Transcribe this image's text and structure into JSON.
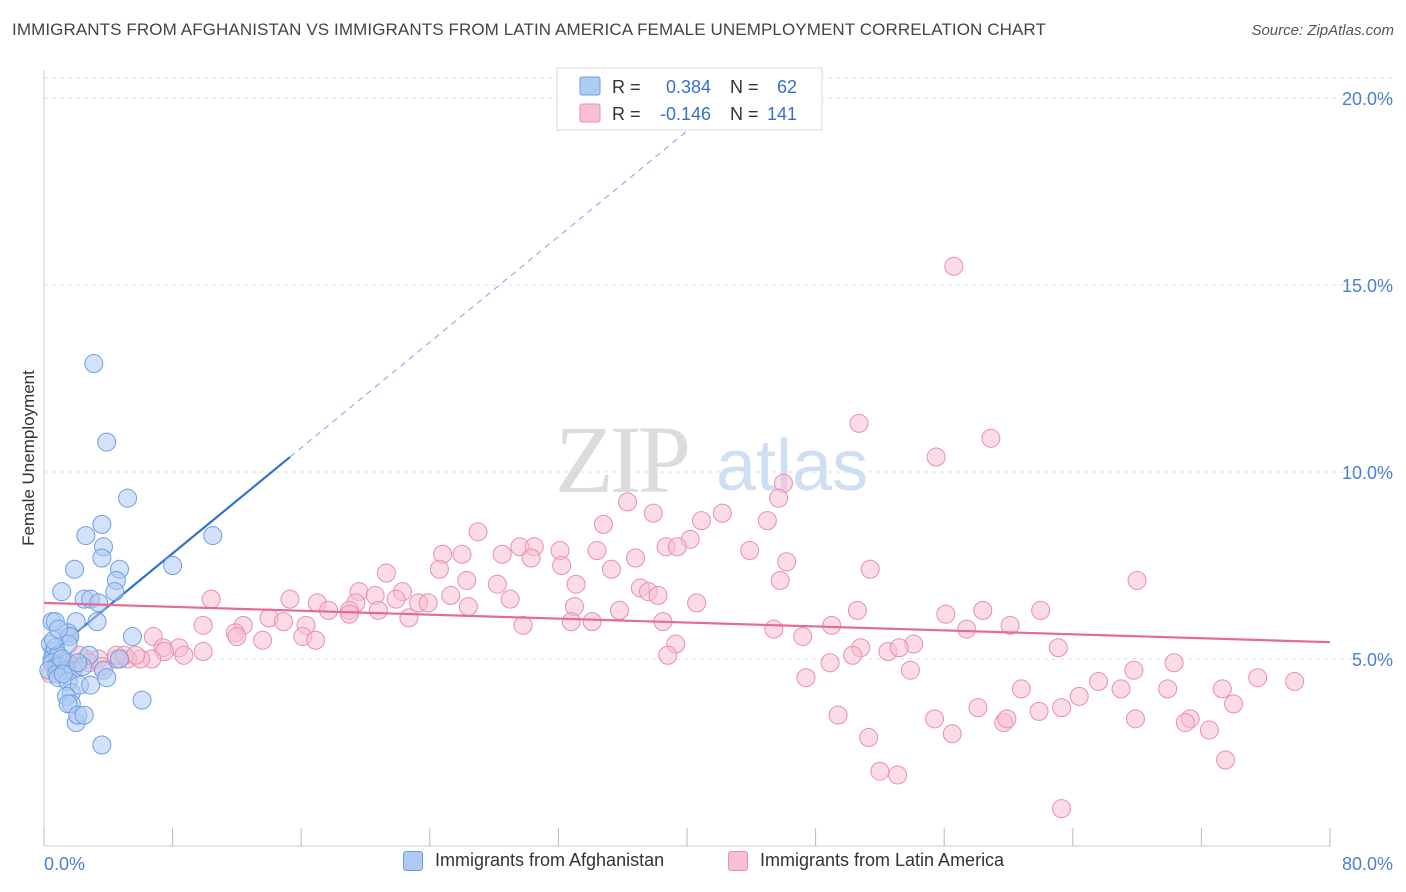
{
  "title": "IMMIGRANTS FROM AFGHANISTAN VS IMMIGRANTS FROM LATIN AMERICA FEMALE UNEMPLOYMENT CORRELATION CHART",
  "source": "Source: ZipAtlas.com",
  "watermark": {
    "zip": "ZIP",
    "atlas": "atlas"
  },
  "legend": {
    "rows": [
      {
        "r_label": "R =",
        "r_value": "0.384",
        "n_label": "N =",
        "n_value": "62"
      },
      {
        "r_label": "R =",
        "r_value": "-0.146",
        "n_label": "N =",
        "n_value": "141"
      }
    ]
  },
  "bottom_legend": [
    "Immigrants from Afghanistan",
    "Immigrants from Latin America"
  ],
  "colors": {
    "blue_fill": "#aecbf2",
    "blue_stroke": "#6f9ee0",
    "blue_line": "#2f72d0",
    "pink_fill": "#f7bfd0",
    "pink_stroke": "#e88fac",
    "pink_line": "#e36b96",
    "tick_label": "#4a7fd4"
  },
  "chart_data": {
    "type": "scatter",
    "title": "IMMIGRANTS FROM AFGHANISTAN VS IMMIGRANTS FROM LATIN AMERICA FEMALE UNEMPLOYMENT CORRELATION CHART",
    "xlabel": "",
    "ylabel": "Female Unemployment",
    "xlim": [
      0,
      80
    ],
    "ylim": [
      0,
      20
    ],
    "x_tick_labels": [
      "0.0%",
      "80.0%"
    ],
    "y_ticks": [
      5,
      10,
      15,
      20
    ],
    "y_tick_labels": [
      "5.0%",
      "10.0%",
      "15.0%",
      "20.0%"
    ],
    "grid": true,
    "legend_position": "top-center",
    "series": [
      {
        "name": "Immigrants from Afghanistan",
        "r": 0.384,
        "n": 62,
        "trend": {
          "x0": 0,
          "y0": 5.0,
          "x1": 15.3,
          "y1": 10.4,
          "dashed_to_x": 40
        },
        "points": [
          [
            3.1,
            12.9
          ],
          [
            3.9,
            10.8
          ],
          [
            5.2,
            9.3
          ],
          [
            10.5,
            8.3
          ],
          [
            3.6,
            8.6
          ],
          [
            2.6,
            8.3
          ],
          [
            3.7,
            8.0
          ],
          [
            3.6,
            7.7
          ],
          [
            8.0,
            7.5
          ],
          [
            1.9,
            7.4
          ],
          [
            4.7,
            7.4
          ],
          [
            4.5,
            7.1
          ],
          [
            1.1,
            6.8
          ],
          [
            2.5,
            6.6
          ],
          [
            2.9,
            6.6
          ],
          [
            4.4,
            6.8
          ],
          [
            3.4,
            6.5
          ],
          [
            0.5,
            6.0
          ],
          [
            0.7,
            6.0
          ],
          [
            2.0,
            6.0
          ],
          [
            3.3,
            6.0
          ],
          [
            1.5,
            5.7
          ],
          [
            1.6,
            5.6
          ],
          [
            1.6,
            5.6
          ],
          [
            1.5,
            5.4
          ],
          [
            0.4,
            5.4
          ],
          [
            0.6,
            5.2
          ],
          [
            0.5,
            5.0
          ],
          [
            0.7,
            5.3
          ],
          [
            0.9,
            5.1
          ],
          [
            2.8,
            5.1
          ],
          [
            4.7,
            5.0
          ],
          [
            0.5,
            4.9
          ],
          [
            0.8,
            4.8
          ],
          [
            1.0,
            4.8
          ],
          [
            1.5,
            4.9
          ],
          [
            0.3,
            4.7
          ],
          [
            0.8,
            4.6
          ],
          [
            1.4,
            4.7
          ],
          [
            1.8,
            4.7
          ],
          [
            2.4,
            4.8
          ],
          [
            3.7,
            4.7
          ],
          [
            5.5,
            5.6
          ],
          [
            0.9,
            4.5
          ],
          [
            1.5,
            4.4
          ],
          [
            1.7,
            4.1
          ],
          [
            2.2,
            4.3
          ],
          [
            2.9,
            4.3
          ],
          [
            1.4,
            4.0
          ],
          [
            1.7,
            3.8
          ],
          [
            6.1,
            3.9
          ],
          [
            1.5,
            3.8
          ],
          [
            3.9,
            4.5
          ],
          [
            2.0,
            3.3
          ],
          [
            2.1,
            3.5
          ],
          [
            2.5,
            3.5
          ],
          [
            3.6,
            2.7
          ],
          [
            1.1,
            5.0
          ],
          [
            0.6,
            5.5
          ],
          [
            1.2,
            4.6
          ],
          [
            2.1,
            4.9
          ],
          [
            0.9,
            5.8
          ]
        ]
      },
      {
        "name": "Immigrants from Latin America",
        "r": -0.146,
        "n": 141,
        "trend": {
          "x0": 0,
          "y0": 6.5,
          "x1": 80,
          "y1": 5.45
        },
        "points": [
          [
            56.6,
            15.5
          ],
          [
            50.7,
            11.3
          ],
          [
            58.9,
            10.9
          ],
          [
            55.5,
            10.4
          ],
          [
            46.0,
            9.7
          ],
          [
            45.7,
            9.3
          ],
          [
            42.2,
            8.9
          ],
          [
            45.0,
            8.7
          ],
          [
            40.9,
            8.7
          ],
          [
            36.3,
            9.2
          ],
          [
            37.9,
            8.9
          ],
          [
            34.8,
            8.6
          ],
          [
            40.2,
            8.2
          ],
          [
            38.7,
            8.0
          ],
          [
            39.4,
            8.0
          ],
          [
            36.8,
            7.7
          ],
          [
            43.9,
            7.9
          ],
          [
            46.2,
            7.6
          ],
          [
            51.4,
            7.4
          ],
          [
            45.8,
            7.1
          ],
          [
            27.0,
            8.4
          ],
          [
            29.6,
            8.0
          ],
          [
            30.5,
            8.0
          ],
          [
            32.1,
            7.9
          ],
          [
            34.4,
            7.9
          ],
          [
            28.5,
            7.8
          ],
          [
            30.3,
            7.7
          ],
          [
            32.2,
            7.5
          ],
          [
            35.3,
            7.4
          ],
          [
            26.0,
            7.8
          ],
          [
            24.8,
            7.8
          ],
          [
            24.6,
            7.4
          ],
          [
            21.3,
            7.3
          ],
          [
            26.3,
            7.1
          ],
          [
            28.2,
            7.0
          ],
          [
            33.1,
            7.0
          ],
          [
            37.1,
            6.9
          ],
          [
            37.6,
            6.8
          ],
          [
            38.2,
            6.7
          ],
          [
            22.3,
            6.8
          ],
          [
            21.9,
            6.6
          ],
          [
            19.6,
            6.8
          ],
          [
            20.6,
            6.7
          ],
          [
            23.3,
            6.5
          ],
          [
            25.3,
            6.7
          ],
          [
            29.0,
            6.6
          ],
          [
            19.4,
            6.5
          ],
          [
            17.0,
            6.5
          ],
          [
            15.3,
            6.6
          ],
          [
            10.4,
            6.6
          ],
          [
            17.7,
            6.3
          ],
          [
            19.0,
            6.3
          ],
          [
            20.8,
            6.3
          ],
          [
            23.9,
            6.5
          ],
          [
            26.4,
            6.4
          ],
          [
            33.0,
            6.4
          ],
          [
            35.8,
            6.3
          ],
          [
            40.6,
            6.5
          ],
          [
            50.6,
            6.3
          ],
          [
            56.1,
            6.2
          ],
          [
            58.4,
            6.3
          ],
          [
            62.0,
            6.3
          ],
          [
            14.0,
            6.1
          ],
          [
            14.9,
            6.0
          ],
          [
            16.3,
            5.9
          ],
          [
            19.0,
            6.2
          ],
          [
            22.7,
            6.1
          ],
          [
            32.8,
            6.0
          ],
          [
            34.1,
            6.0
          ],
          [
            38.5,
            6.0
          ],
          [
            49.0,
            5.9
          ],
          [
            60.1,
            5.9
          ],
          [
            68.0,
            7.1
          ],
          [
            12.4,
            5.9
          ],
          [
            9.9,
            5.9
          ],
          [
            11.9,
            5.7
          ],
          [
            12.0,
            5.6
          ],
          [
            13.6,
            5.5
          ],
          [
            16.1,
            5.6
          ],
          [
            16.9,
            5.5
          ],
          [
            29.8,
            5.9
          ],
          [
            39.3,
            5.4
          ],
          [
            47.2,
            5.6
          ],
          [
            50.8,
            5.3
          ],
          [
            45.4,
            5.8
          ],
          [
            54.1,
            5.4
          ],
          [
            57.4,
            5.8
          ],
          [
            63.1,
            5.3
          ],
          [
            6.8,
            5.6
          ],
          [
            7.4,
            5.3
          ],
          [
            8.4,
            5.3
          ],
          [
            9.9,
            5.2
          ],
          [
            8.7,
            5.1
          ],
          [
            7.5,
            5.2
          ],
          [
            6.7,
            5.0
          ],
          [
            6.0,
            5.0
          ],
          [
            5.2,
            5.0
          ],
          [
            4.5,
            5.0
          ],
          [
            3.4,
            5.0
          ],
          [
            2.6,
            5.0
          ],
          [
            2.2,
            5.1
          ],
          [
            1.2,
            4.9
          ],
          [
            0.7,
            4.8
          ],
          [
            0.4,
            4.6
          ],
          [
            1.8,
            4.8
          ],
          [
            2.8,
            4.9
          ],
          [
            3.6,
            4.8
          ],
          [
            4.5,
            5.1
          ],
          [
            5.0,
            5.1
          ],
          [
            5.7,
            5.1
          ],
          [
            38.8,
            5.1
          ],
          [
            50.3,
            5.1
          ],
          [
            52.5,
            5.2
          ],
          [
            53.2,
            5.3
          ],
          [
            48.9,
            4.9
          ],
          [
            47.4,
            4.5
          ],
          [
            53.9,
            4.7
          ],
          [
            70.3,
            4.9
          ],
          [
            67.8,
            4.7
          ],
          [
            65.6,
            4.4
          ],
          [
            75.5,
            4.5
          ],
          [
            77.8,
            4.4
          ],
          [
            60.8,
            4.2
          ],
          [
            64.4,
            4.0
          ],
          [
            67.0,
            4.2
          ],
          [
            69.9,
            4.2
          ],
          [
            73.3,
            4.2
          ],
          [
            61.9,
            3.6
          ],
          [
            58.1,
            3.7
          ],
          [
            63.3,
            3.7
          ],
          [
            55.4,
            3.4
          ],
          [
            49.4,
            3.5
          ],
          [
            56.5,
            3.0
          ],
          [
            59.7,
            3.3
          ],
          [
            67.9,
            3.4
          ],
          [
            59.9,
            3.4
          ],
          [
            71.3,
            3.4
          ],
          [
            71.0,
            3.3
          ],
          [
            72.5,
            3.1
          ],
          [
            74.0,
            3.8
          ],
          [
            51.3,
            2.9
          ],
          [
            52.0,
            2.0
          ],
          [
            53.1,
            1.9
          ],
          [
            73.5,
            2.3
          ],
          [
            63.3,
            1.0
          ]
        ]
      }
    ]
  }
}
